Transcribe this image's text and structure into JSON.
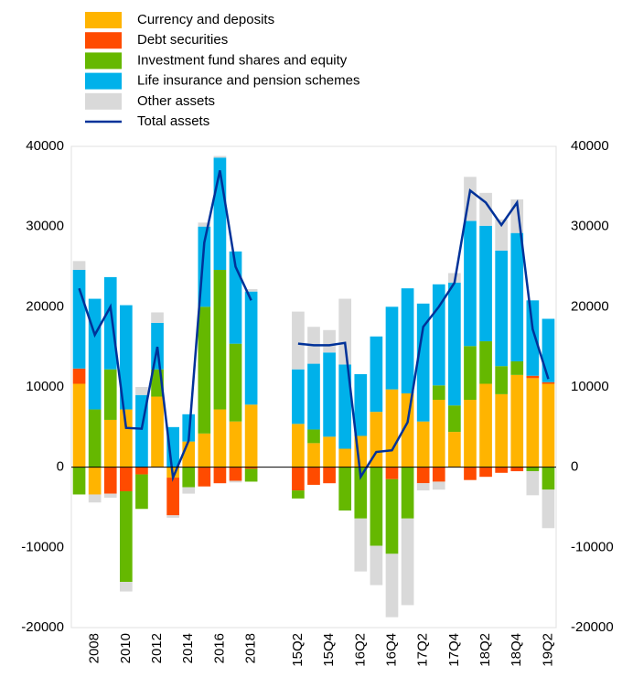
{
  "chart_data": {
    "type": "bar",
    "stacked": true,
    "grid": false,
    "legend": "top-left",
    "categories": [
      null,
      "2008",
      null,
      "2010",
      null,
      "2012",
      null,
      "2014",
      null,
      "2016",
      null,
      "2018",
      null,
      null,
      "15Q2",
      null,
      "15Q4",
      null,
      "16Q2",
      null,
      "16Q4",
      null,
      "17Q2",
      null,
      "17Q4",
      null,
      "18Q2",
      null,
      "18Q4",
      null,
      "19Q2"
    ],
    "series": [
      {
        "name": "Currency and deposits",
        "color": "#ffb400",
        "type": "bar",
        "values": [
          10400,
          -3400,
          5900,
          7200,
          0,
          8800,
          -1300,
          3200,
          4200,
          7200,
          5700,
          7800,
          null,
          null,
          5400,
          3000,
          3800,
          2300,
          3900,
          6900,
          9700,
          9200,
          5700,
          8400,
          4400,
          8400,
          10400,
          9100,
          11500,
          11100,
          10400
        ]
      },
      {
        "name": "Debt securities",
        "color": "#ff4b00",
        "type": "bar",
        "values": [
          1900,
          0,
          -3300,
          -3000,
          -900,
          0,
          -4700,
          0,
          -2400,
          -2000,
          -1700,
          -200,
          null,
          null,
          -2900,
          -2200,
          -2000,
          0,
          0,
          0,
          -1500,
          0,
          -2000,
          -1800,
          0,
          -1600,
          -1200,
          -700,
          -500,
          300,
          200
        ]
      },
      {
        "name": "Investment fund shares and equity",
        "color": "#65b800",
        "type": "bar",
        "values": [
          -3400,
          7200,
          6300,
          -11300,
          -4300,
          3400,
          0,
          -2500,
          15800,
          17400,
          9700,
          -1600,
          null,
          null,
          -1000,
          1700,
          0,
          -5400,
          -6400,
          -9800,
          -9300,
          -6400,
          0,
          1800,
          3300,
          6700,
          5300,
          3500,
          1700,
          -500,
          -2800
        ]
      },
      {
        "name": "Life insurance and pension schemes",
        "color": "#00b1ea",
        "type": "bar",
        "values": [
          12300,
          13800,
          11500,
          13000,
          9000,
          5800,
          5000,
          3400,
          10000,
          14000,
          11500,
          14100,
          null,
          null,
          6800,
          8200,
          10500,
          10500,
          7700,
          9400,
          10300,
          13100,
          14700,
          12600,
          15300,
          15600,
          14400,
          14400,
          16000,
          9400,
          7900
        ]
      },
      {
        "name": "Other assets",
        "color": "#d9d9d9",
        "type": "bar",
        "values": [
          1100,
          -1000,
          -500,
          -1200,
          1000,
          1300,
          -300,
          -800,
          500,
          200,
          -200,
          300,
          null,
          null,
          7200,
          4600,
          2800,
          8200,
          -6600,
          -4900,
          -7900,
          -10800,
          -900,
          -1000,
          1200,
          5500,
          4100,
          3900,
          4200,
          -3000,
          -4800
        ]
      },
      {
        "name": "Total assets",
        "color": "#003299",
        "type": "line",
        "values": [
          22300,
          16500,
          20000,
          4900,
          4800,
          15000,
          -1300,
          3300,
          28000,
          37000,
          25000,
          20800,
          null,
          null,
          15400,
          15200,
          15200,
          15500,
          -1200,
          1900,
          2100,
          5600,
          17500,
          20000,
          23000,
          34500,
          33000,
          30200,
          33000,
          17200,
          11000
        ]
      }
    ],
    "ylim": [
      -20000,
      40000
    ],
    "yticks": [
      -20000,
      -10000,
      0,
      10000,
      20000,
      30000,
      40000
    ],
    "y2lim": [
      -20000,
      40000
    ],
    "y2ticks": [
      -20000,
      -10000,
      0,
      10000,
      20000,
      30000,
      40000
    ]
  }
}
